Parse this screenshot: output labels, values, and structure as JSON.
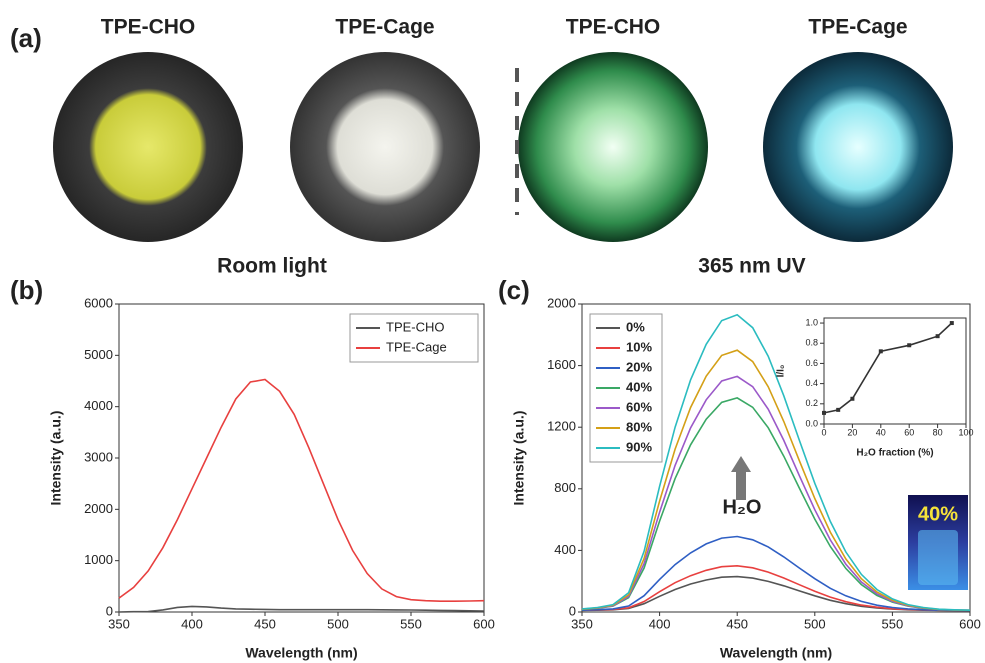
{
  "panel_a": {
    "label": "(a)",
    "photos": [
      {
        "label": "TPE-CHO"
      },
      {
        "label": "TPE-Cage"
      },
      {
        "label": "TPE-CHO"
      },
      {
        "label": "TPE-Cage"
      }
    ],
    "captions": [
      "Room light",
      "365 nm UV"
    ]
  },
  "chart_data": [
    {
      "type": "line",
      "panel_label": "(b)",
      "xlabel": "Wavelength (nm)",
      "ylabel": "Intensity (a.u.)",
      "x": [
        350,
        360,
        370,
        380,
        390,
        400,
        410,
        420,
        430,
        440,
        450,
        460,
        470,
        480,
        490,
        500,
        510,
        520,
        530,
        540,
        550,
        560,
        570,
        580,
        590,
        600
      ],
      "series": [
        {
          "name": "TPE-CHO",
          "color": "#555555",
          "values": [
            0,
            5,
            10,
            40,
            90,
            110,
            100,
            75,
            60,
            55,
            50,
            45,
            45,
            45,
            45,
            45,
            45,
            45,
            42,
            40,
            38,
            35,
            32,
            28,
            24,
            20
          ]
        },
        {
          "name": "TPE-Cage",
          "color": "#e8403f",
          "values": [
            270,
            480,
            800,
            1250,
            1800,
            2400,
            3000,
            3600,
            4150,
            4480,
            4530,
            4300,
            3850,
            3200,
            2500,
            1800,
            1200,
            750,
            450,
            300,
            240,
            220,
            210,
            210,
            215,
            220
          ]
        }
      ],
      "xlim": [
        350,
        600
      ],
      "xticks": [
        350,
        400,
        450,
        500,
        550,
        600
      ],
      "ylim": [
        0,
        6000
      ],
      "yticks": [
        0,
        1000,
        2000,
        3000,
        4000,
        5000,
        6000
      ],
      "legend": "upper right"
    },
    {
      "type": "line",
      "panel_label": "(c)",
      "xlabel": "Wavelength (nm)",
      "ylabel": "Intensity (a.u.)",
      "x": [
        350,
        360,
        370,
        380,
        390,
        400,
        410,
        420,
        430,
        440,
        450,
        460,
        470,
        480,
        490,
        500,
        510,
        520,
        530,
        540,
        550,
        560,
        570,
        580,
        590,
        600
      ],
      "series": [
        {
          "name": "0%",
          "color": "#555555",
          "values": [
            11,
            12,
            14,
            23,
            54,
            102,
            146,
            182,
            208,
            226,
            230,
            220,
            199,
            170,
            137,
            105,
            76,
            54,
            37,
            26,
            19,
            14,
            12,
            11,
            10,
            10
          ]
        },
        {
          "name": "10%",
          "color": "#e8403f",
          "values": [
            11,
            13,
            16,
            27,
            68,
            132,
            190,
            236,
            271,
            294,
            300,
            287,
            259,
            221,
            177,
            135,
            97,
            67,
            45,
            31,
            21,
            16,
            13,
            11,
            11,
            10
          ]
        },
        {
          "name": "20%",
          "color": "#2f5fc4",
          "values": [
            12,
            15,
            20,
            39,
            106,
            212,
            308,
            384,
            442,
            480,
            490,
            469,
            423,
            358,
            286,
            216,
            154,
            105,
            69,
            44,
            29,
            20,
            15,
            12,
            11,
            10
          ]
        },
        {
          "name": "40%",
          "color": "#3aa865",
          "values": [
            17,
            24,
            38,
            93,
            286,
            590,
            866,
            1086,
            1252,
            1362,
            1390,
            1329,
            1197,
            1012,
            805,
            603,
            425,
            283,
            178,
            108,
            64,
            38,
            24,
            16,
            13,
            11
          ]
        },
        {
          "name": "60%",
          "color": "#9b59c9",
          "values": [
            18,
            25,
            40,
            101,
            314,
            648,
            952,
            1196,
            1378,
            1500,
            1530,
            1463,
            1317,
            1114,
            886,
            664,
            468,
            311,
            195,
            118,
            69,
            40,
            25,
            16,
            13,
            12
          ]
        },
        {
          "name": "80%",
          "color": "#d4a017",
          "values": [
            18,
            27,
            44,
            111,
            348,
            720,
            1058,
            1328,
            1531,
            1666,
            1700,
            1626,
            1463,
            1237,
            983,
            737,
            519,
            345,
            216,
            130,
            76,
            44,
            27,
            17,
            13,
            12
          ]
        },
        {
          "name": "90%",
          "color": "#2bbcc0",
          "values": [
            20,
            29,
            48,
            125,
            394,
            816,
            1200,
            1508,
            1738,
            1892,
            1930,
            1846,
            1661,
            1404,
            1116,
            836,
            588,
            390,
            244,
            146,
            85,
            48,
            29,
            18,
            14,
            12
          ]
        }
      ],
      "xlim": [
        350,
        600
      ],
      "xticks": [
        350,
        400,
        450,
        500,
        550,
        600
      ],
      "ylim": [
        0,
        2000
      ],
      "yticks": [
        0,
        400,
        800,
        1200,
        1600,
        2000
      ],
      "legend": "upper left",
      "annotations": [
        "H₂O",
        "40%"
      ]
    },
    {
      "type": "line",
      "xlabel": "H₂O fraction (%)",
      "ylabel": "I/I₀",
      "markers": true,
      "x": [
        0,
        10,
        20,
        40,
        60,
        80,
        90
      ],
      "series": [
        {
          "color": "#333333",
          "values": [
            0.11,
            0.14,
            0.25,
            0.72,
            0.78,
            0.87,
            1.0
          ]
        }
      ],
      "xlim": [
        0,
        100
      ],
      "xticks": [
        0,
        20,
        40,
        60,
        80,
        100
      ],
      "ylim": [
        0,
        1.05
      ],
      "yticks": [
        {
          "value": 0,
          "label": "0.0"
        },
        {
          "value": 0.2,
          "label": "0.2"
        },
        {
          "value": 0.4,
          "label": "0.4"
        },
        {
          "value": 0.6,
          "label": "0.6"
        },
        {
          "value": 0.8,
          "label": "0.8"
        },
        {
          "value": 1.0,
          "label": "1.0"
        }
      ]
    }
  ]
}
